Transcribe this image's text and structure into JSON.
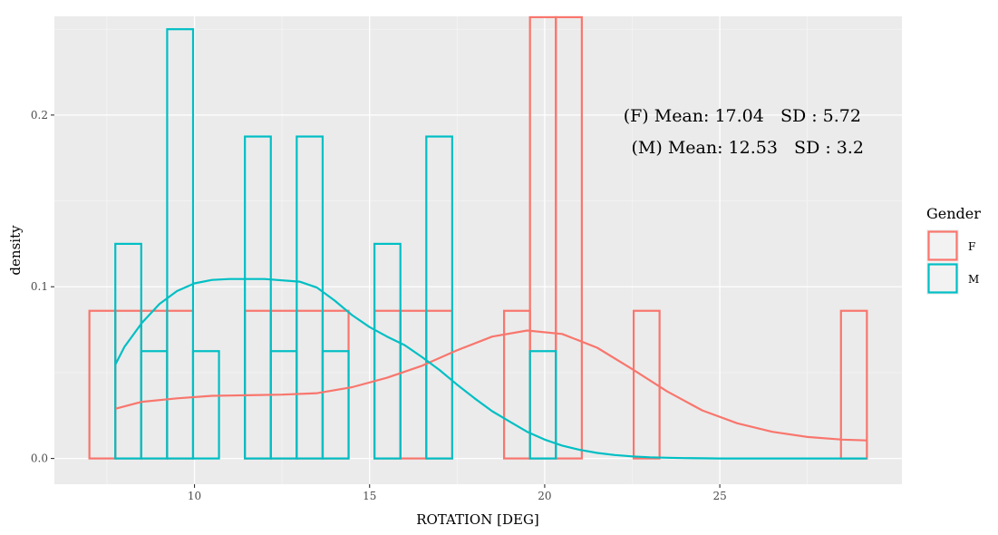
{
  "chart_data": {
    "type": "histogram",
    "xlabel": "ROTATION [DEG]",
    "ylabel": "density",
    "xlim": [
      6.0,
      30.2
    ],
    "ylim": [
      -0.015,
      0.2575
    ],
    "x_ticks": [
      10,
      15,
      20,
      25
    ],
    "y_ticks": [
      0.0,
      0.1,
      0.2
    ],
    "y_tick_labels": [
      "0.0",
      "0.1",
      "0.2"
    ],
    "x_tick_labels": [
      "10",
      "15",
      "20",
      "25"
    ],
    "bin_width": 0.74,
    "annotations": [
      "(F) Mean: 17.04   SD : 5.72",
      "(M) Mean: 12.53   SD : 3.2"
    ],
    "legend": {
      "title": "Gender",
      "position": "right"
    },
    "series": [
      {
        "name": "F",
        "color": "#F8766D",
        "bins": [
          {
            "x0": 7.0,
            "x1": 7.74,
            "density": 0.086
          },
          {
            "x0": 7.74,
            "x1": 8.48,
            "density": 0.086
          },
          {
            "x0": 8.48,
            "x1": 9.22,
            "density": 0.086
          },
          {
            "x0": 9.22,
            "x1": 9.96,
            "density": 0.086
          },
          {
            "x0": 11.44,
            "x1": 12.18,
            "density": 0.086
          },
          {
            "x0": 12.18,
            "x1": 12.92,
            "density": 0.086
          },
          {
            "x0": 12.92,
            "x1": 13.66,
            "density": 0.086
          },
          {
            "x0": 13.66,
            "x1": 14.4,
            "density": 0.086
          },
          {
            "x0": 15.14,
            "x1": 15.88,
            "density": 0.086
          },
          {
            "x0": 15.88,
            "x1": 16.62,
            "density": 0.086
          },
          {
            "x0": 16.62,
            "x1": 17.36,
            "density": 0.086
          },
          {
            "x0": 18.84,
            "x1": 19.58,
            "density": 0.086
          },
          {
            "x0": 19.58,
            "x1": 20.32,
            "density": 0.257
          },
          {
            "x0": 20.32,
            "x1": 21.06,
            "density": 0.257
          },
          {
            "x0": 22.54,
            "x1": 23.28,
            "density": 0.086
          },
          {
            "x0": 28.46,
            "x1": 29.2,
            "density": 0.086
          }
        ],
        "density_curve": {
          "x": [
            7.75,
            8.5,
            9.5,
            10.5,
            11.5,
            12.5,
            13.5,
            14.5,
            15.5,
            16.5,
            17.5,
            18.5,
            19.5,
            20.5,
            21.5,
            22.5,
            23.5,
            24.5,
            25.5,
            26.5,
            27.5,
            28.5,
            29.2
          ],
          "y": [
            0.029,
            0.033,
            0.035,
            0.0365,
            0.0368,
            0.0372,
            0.038,
            0.0415,
            0.047,
            0.054,
            0.063,
            0.071,
            0.0745,
            0.0725,
            0.0645,
            0.052,
            0.039,
            0.028,
            0.0205,
            0.0155,
            0.0125,
            0.011,
            0.0105
          ]
        }
      },
      {
        "name": "M",
        "color": "#00BFC4",
        "bins": [
          {
            "x0": 7.74,
            "x1": 8.48,
            "density": 0.125
          },
          {
            "x0": 8.48,
            "x1": 9.22,
            "density": 0.0625
          },
          {
            "x0": 9.22,
            "x1": 9.96,
            "density": 0.25
          },
          {
            "x0": 9.96,
            "x1": 10.7,
            "density": 0.0625
          },
          {
            "x0": 11.44,
            "x1": 12.18,
            "density": 0.1875
          },
          {
            "x0": 12.18,
            "x1": 12.92,
            "density": 0.0625
          },
          {
            "x0": 12.92,
            "x1": 13.66,
            "density": 0.1875
          },
          {
            "x0": 13.66,
            "x1": 14.4,
            "density": 0.0625
          },
          {
            "x0": 15.14,
            "x1": 15.88,
            "density": 0.125
          },
          {
            "x0": 16.62,
            "x1": 17.36,
            "density": 0.1875
          },
          {
            "x0": 19.58,
            "x1": 20.32,
            "density": 0.0625
          }
        ],
        "density_curve": {
          "x": [
            7.75,
            8.0,
            8.5,
            9.0,
            9.5,
            10.0,
            10.5,
            11.0,
            12.0,
            13.0,
            13.5,
            14.0,
            14.5,
            15.0,
            15.5,
            16.0,
            16.5,
            17.0,
            17.5,
            18.0,
            18.5,
            19.0,
            19.5,
            20.0,
            20.5,
            21.0,
            21.5,
            22.0,
            22.5,
            23.0,
            23.5,
            24.0,
            24.5,
            25.0,
            26.0,
            27.0,
            28.0,
            29.2
          ],
          "y": [
            0.055,
            0.065,
            0.079,
            0.09,
            0.0975,
            0.102,
            0.104,
            0.1045,
            0.1045,
            0.103,
            0.0995,
            0.092,
            0.0835,
            0.0765,
            0.071,
            0.066,
            0.059,
            0.0515,
            0.043,
            0.035,
            0.0275,
            0.0215,
            0.0155,
            0.011,
            0.0075,
            0.005,
            0.0032,
            0.002,
            0.0012,
            0.0007,
            0.0004,
            0.0002,
            0.0001,
            0.0,
            0.0,
            0.0,
            0.0,
            0.0
          ]
        }
      }
    ]
  }
}
